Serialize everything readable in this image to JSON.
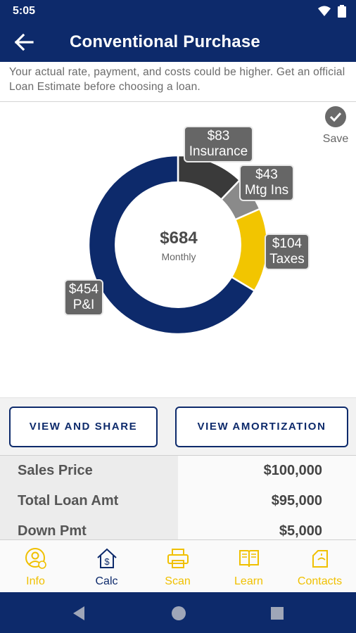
{
  "status": {
    "time": "5:05"
  },
  "header": {
    "title": "Conventional Purchase"
  },
  "disclaimer": "Your actual rate, payment, and costs could be higher. Get an official Loan Estimate before choosing a loan.",
  "save": {
    "label": "Save"
  },
  "summary": {
    "total": "$684",
    "caption": "Monthly"
  },
  "breakdown": [
    {
      "amount": "$83",
      "label": "Insurance",
      "value": 83,
      "color": "#3a3a3a"
    },
    {
      "amount": "$43",
      "label": "Mtg Ins",
      "value": 43,
      "color": "#8a8a8a"
    },
    {
      "amount": "$104",
      "label": "Taxes",
      "value": 104,
      "color": "#f2c500"
    },
    {
      "amount": "$454",
      "label": "P&I",
      "value": 454,
      "color": "#0d2a6b"
    }
  ],
  "actions": {
    "share_label": "VIEW AND SHARE",
    "amortization_label": "VIEW AMORTIZATION"
  },
  "details": [
    {
      "label": "Sales Price",
      "value": "$100,000"
    },
    {
      "label": "Total Loan Amt",
      "value": "$95,000"
    },
    {
      "label": "Down Pmt",
      "value": "$5,000"
    }
  ],
  "nav": [
    {
      "label": "Info",
      "icon": "info-person-icon"
    },
    {
      "label": "Calc",
      "icon": "house-dollar-icon"
    },
    {
      "label": "Scan",
      "icon": "scanner-icon"
    },
    {
      "label": "Learn",
      "icon": "book-icon"
    },
    {
      "label": "Contacts",
      "icon": "contacts-icon"
    }
  ],
  "colors": {
    "brand": "#0d2a6b",
    "accent": "#f2c500"
  }
}
